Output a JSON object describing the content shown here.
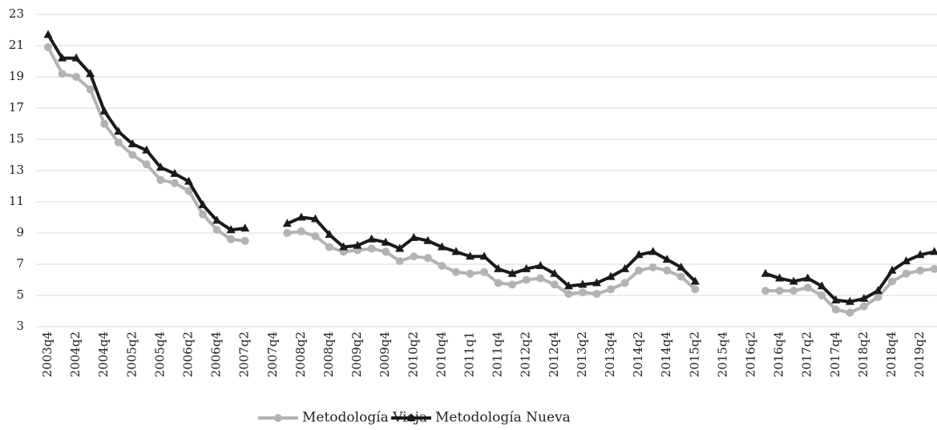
{
  "chart_data": {
    "type": "line",
    "categories": [
      "2003q4",
      null,
      "2004q2",
      null,
      "2004q4",
      null,
      "2005q2",
      null,
      "2005q4",
      null,
      "2006q2",
      null,
      "2006q4",
      null,
      "2007q2",
      null,
      "2007q4",
      null,
      "2008q2",
      null,
      "2008q4",
      null,
      "2009q2",
      null,
      "2009q4",
      null,
      "2010q2",
      null,
      "2010q4",
      null,
      "2011q1",
      null,
      "2011q4",
      null,
      "2012q2",
      null,
      "2012q4",
      null,
      "2013q2",
      null,
      "2013q4",
      null,
      "2014q2",
      null,
      "2014q4",
      null,
      "2015q2",
      null,
      "2015q4",
      null,
      "2016q2",
      null,
      "2016q4",
      null,
      "2017q2",
      null,
      "2017q4",
      null,
      "2018q2",
      null,
      "2018q4",
      null,
      "2019q2",
      null
    ],
    "series": [
      {
        "name": "Metodología Vieja",
        "color": "#b3b3b3",
        "marker": "circle",
        "values": [
          20.9,
          19.2,
          19.0,
          18.2,
          16.0,
          14.8,
          14.0,
          13.4,
          12.4,
          12.2,
          11.7,
          10.2,
          9.2,
          8.6,
          8.5,
          null,
          null,
          9.0,
          9.1,
          8.8,
          8.1,
          7.8,
          7.9,
          8.0,
          7.8,
          7.2,
          7.5,
          7.4,
          6.9,
          6.5,
          6.4,
          6.5,
          5.8,
          5.7,
          6.0,
          6.1,
          5.7,
          5.1,
          5.2,
          5.1,
          5.4,
          5.8,
          6.6,
          6.8,
          6.6,
          6.2,
          5.4,
          null,
          null,
          null,
          null,
          5.3,
          5.3,
          5.3,
          5.5,
          5.0,
          4.1,
          3.9,
          4.3,
          4.9,
          5.9,
          6.4,
          6.6,
          6.7
        ]
      },
      {
        "name": "Metodología Nueva",
        "color": "#1a1a1a",
        "marker": "triangle",
        "values": [
          21.7,
          20.2,
          20.2,
          19.2,
          16.8,
          15.5,
          14.7,
          14.3,
          13.2,
          12.8,
          12.3,
          10.8,
          9.8,
          9.2,
          9.3,
          null,
          null,
          9.6,
          10.0,
          9.9,
          8.9,
          8.1,
          8.2,
          8.6,
          8.4,
          8.0,
          8.7,
          8.5,
          8.1,
          7.8,
          7.5,
          7.5,
          6.7,
          6.4,
          6.7,
          6.9,
          6.4,
          5.6,
          5.7,
          5.8,
          6.2,
          6.7,
          7.6,
          7.8,
          7.3,
          6.8,
          5.9,
          null,
          null,
          null,
          null,
          6.4,
          6.1,
          5.9,
          6.1,
          5.6,
          4.7,
          4.6,
          4.8,
          5.3,
          6.6,
          7.2,
          7.6,
          7.8
        ]
      }
    ],
    "ylim": [
      3,
      23
    ],
    "yticks": [
      3,
      5,
      7,
      9,
      11,
      13,
      15,
      17,
      19,
      21,
      23
    ],
    "grid": true,
    "legend": "bottom"
  }
}
